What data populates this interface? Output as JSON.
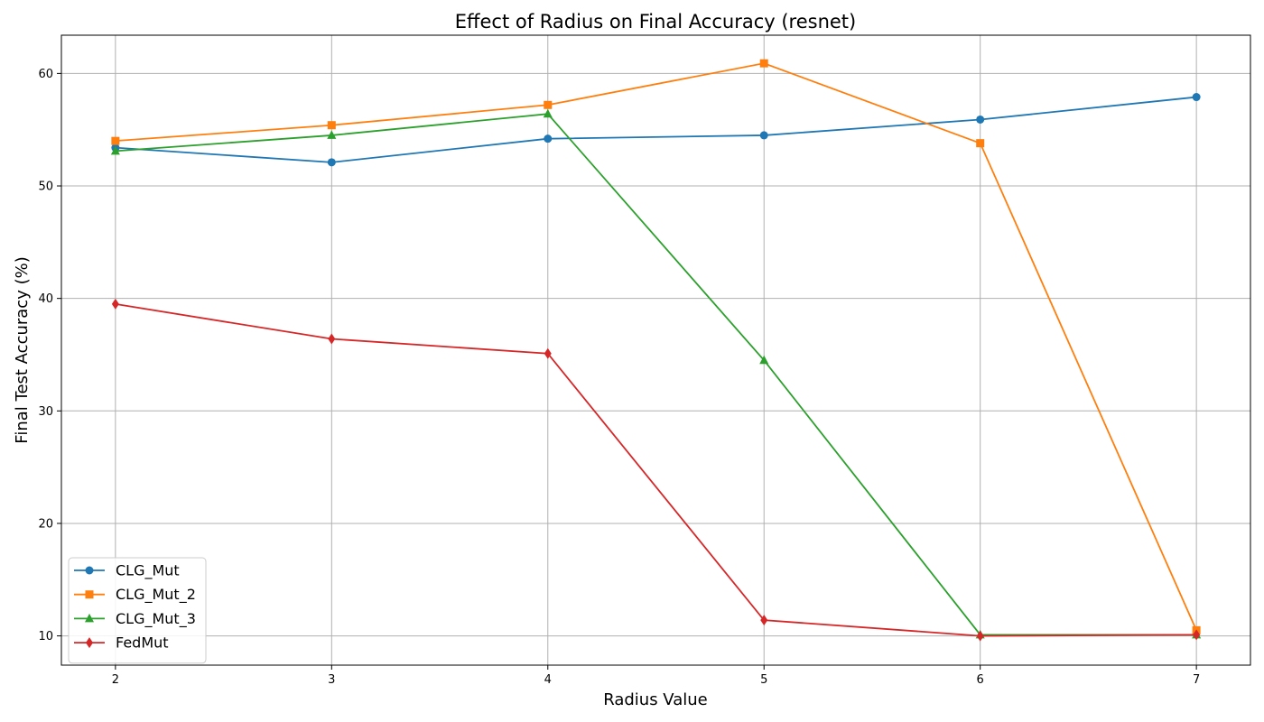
{
  "chart_data": {
    "type": "line",
    "title": "Effect of Radius on Final Accuracy (resnet)",
    "xlabel": "Radius Value",
    "ylabel": "Final Test Accuracy (%)",
    "x": [
      2,
      3,
      4,
      5,
      6,
      7
    ],
    "xlim": [
      1.75,
      7.25
    ],
    "ylim": [
      7.4,
      63.4
    ],
    "xticks": [
      2,
      3,
      4,
      5,
      6,
      7
    ],
    "yticks": [
      10,
      20,
      30,
      40,
      50,
      60
    ],
    "grid": true,
    "legend_position": "lower-left",
    "series": [
      {
        "name": "CLG_Mut",
        "color": "#1f77b4",
        "marker": "circle",
        "values": [
          53.4,
          52.1,
          54.2,
          54.5,
          55.9,
          57.9
        ]
      },
      {
        "name": "CLG_Mut_2",
        "color": "#ff7f0e",
        "marker": "square",
        "values": [
          54.0,
          55.4,
          57.2,
          60.9,
          53.8,
          10.5
        ]
      },
      {
        "name": "CLG_Mut_3",
        "color": "#2ca02c",
        "marker": "triangle",
        "values": [
          53.1,
          54.5,
          56.4,
          34.5,
          10.1,
          10.1
        ]
      },
      {
        "name": "FedMut",
        "color": "#d62728",
        "marker": "diamond",
        "values": [
          39.5,
          36.4,
          35.1,
          11.4,
          10.0,
          10.1
        ]
      }
    ]
  }
}
